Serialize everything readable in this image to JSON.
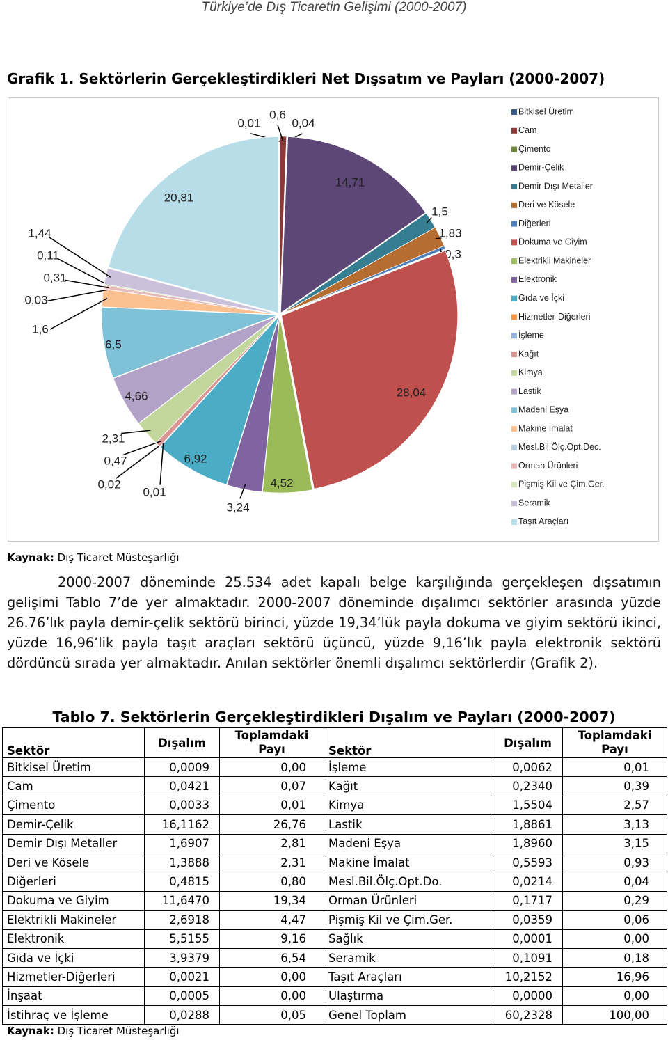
{
  "header": {
    "title": "Türkiye’de Dış Ticaretin Gelişimi (2000-2007)"
  },
  "figure": {
    "title": "Grafik 1. Sektörlerin Gerçekleştirdikleri Net Dışsatım ve Payları (2000-2007)",
    "source": {
      "label": "Kaynak:",
      "text": "Dış Ticaret Müsteşarlığı"
    }
  },
  "chart_data": {
    "type": "pie",
    "legend": "right",
    "categories": [
      "Bitkisel Üretim",
      "Cam",
      "Çimento",
      "Demir-Çelik",
      "Demir Dışı Metaller",
      "Deri ve Kösele",
      "Diğerleri",
      "Dokuma ve Giyim",
      "Elektrikli Makineler",
      "Elektronik",
      "Gıda ve İçki",
      "Hizmetler-Diğerleri",
      "İşleme",
      "Kağıt",
      "Kimya",
      "Lastik",
      "Madeni Eşya",
      "Makine İmalat",
      "Mesl.Bil.Ölç.Opt.Dec.",
      "Orman Ürünleri",
      "Pişmiş Kil ve Çim.Ger.",
      "Seramik",
      "Taşıt Araçları"
    ],
    "values": [
      0.01,
      0.6,
      0.04,
      14.71,
      1.5,
      1.83,
      0.3,
      28.04,
      4.52,
      3.24,
      6.92,
      0.01,
      0.02,
      0.47,
      2.31,
      4.66,
      6.5,
      1.6,
      0.03,
      0.31,
      0.11,
      1.44,
      20.81
    ],
    "value_labels": [
      "0,01",
      "0,6",
      "0,04",
      "14,71",
      "1,5",
      "1,83",
      "0,3",
      "28,04",
      "4,52",
      "3,24",
      "6,92",
      "0,01",
      "0,02",
      "0,47",
      "2,31",
      "4,66",
      "6,5",
      "1,6",
      "0,03",
      "0,31",
      "0,11",
      "1,44",
      "20,81"
    ],
    "colors": [
      "#385D8A",
      "#8C3836",
      "#71893F",
      "#5C4776",
      "#357D91",
      "#B66D31",
      "#4F81BD",
      "#C0504D",
      "#9BBB59",
      "#8064A2",
      "#4BACC6",
      "#F79646",
      "#95B3D7",
      "#D99694",
      "#C3D69B",
      "#B3A2C7",
      "#7FC1D6",
      "#FAC090",
      "#B9CDE5",
      "#E6B9B8",
      "#D7E4BD",
      "#CCC1DA",
      "#B7DEE8"
    ]
  },
  "paragraph": "2000-2007 döneminde 25.534 adet kapalı belge karşılığında gerçekleşen dışsatımın gelişimi Tablo 7’de yer almaktadır. 2000-2007 döneminde dışalımcı sektörler arasında yüzde 26.76’lık payla demir-çelik sektörü birinci, yüzde 19,34’lük payla dokuma ve giyim sektörü ikinci, yüzde 16,96’lik payla taşıt araçları sektörü üçüncü, yüzde 9,16’lık payla elektronik sektörü dördüncü sırada yer almaktadır. Anılan sektörler önemli dışalımcı sektörlerdir (Grafik 2).",
  "table": {
    "title": "Tablo 7. Sektörlerin Gerçekleştirdikleri Dışalım ve Payları (2000-2007)",
    "header": [
      "Sektör",
      "Dışalım",
      "Toplamdaki Payı",
      "Sektör",
      "Dışalım",
      "Toplamdaki Payı"
    ],
    "rows": [
      [
        "Bitkisel Üretim",
        "0,0009",
        "0,00",
        "İşleme",
        "0,0062",
        "0,01"
      ],
      [
        "Cam",
        "0,0421",
        "0,07",
        "Kağıt",
        "0,2340",
        "0,39"
      ],
      [
        "Çimento",
        "0,0033",
        "0,01",
        "Kimya",
        "1,5504",
        "2,57"
      ],
      [
        "Demir-Çelik",
        "16,1162",
        "26,76",
        "Lastik",
        "1,8861",
        "3,13"
      ],
      [
        "Demir Dışı Metaller",
        "1,6907",
        "2,81",
        "Madeni Eşya",
        "1,8960",
        "3,15"
      ],
      [
        "Deri ve Kösele",
        "1,3888",
        "2,31",
        "Makine İmalat",
        "0,5593",
        "0,93"
      ],
      [
        "Diğerleri",
        "0,4815",
        "0,80",
        "Mesl.Bil.Ölç.Opt.Do.",
        "0,0214",
        "0,04"
      ],
      [
        "Dokuma ve Giyim",
        "11,6470",
        "19,34",
        "Orman Ürünleri",
        "0,1717",
        "0,29"
      ],
      [
        "Elektrikli Makineler",
        "2,6918",
        "4,47",
        "Pişmiş Kil ve Çim.Ger.",
        "0,0359",
        "0,06"
      ],
      [
        "Elektronik",
        "5,5155",
        "9,16",
        "Sağlık",
        "0,0001",
        "0,00"
      ],
      [
        "Gıda ve İçki",
        "3,9379",
        "6,54",
        "Seramik",
        "0,1091",
        "0,18"
      ],
      [
        "Hizmetler-Diğerleri",
        "0,0021",
        "0,00",
        "Taşıt Araçları",
        "10,2152",
        "16,96"
      ],
      [
        "İnşaat",
        "0,0005",
        "0,00",
        "Ulaştırma",
        "0,0000",
        "0,00"
      ],
      [
        "İstihraç ve İşleme",
        "0,0288",
        "0,05",
        "Genel Toplam",
        "60,2328",
        "100,00"
      ]
    ],
    "source": {
      "label": "Kaynak:",
      "text": "Dış Ticaret Müsteşarlığı"
    }
  }
}
